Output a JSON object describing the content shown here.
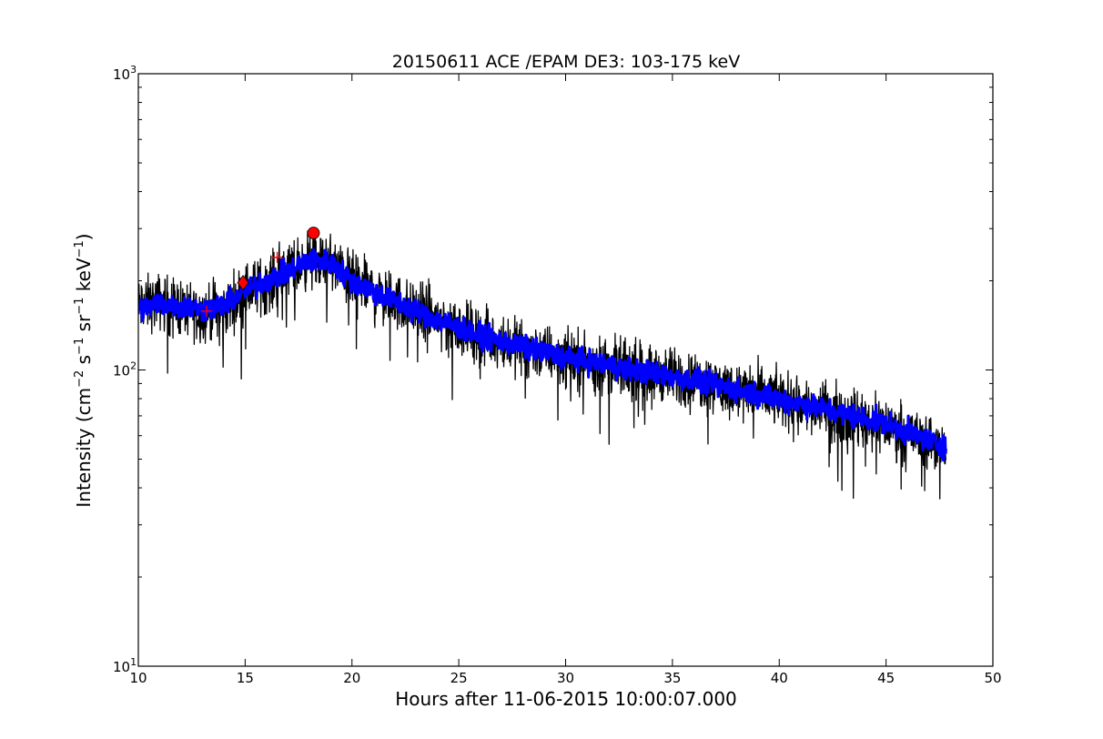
{
  "chart_data": {
    "type": "line",
    "title": "20150611 ACE /EPAM DE3: 103-175 keV",
    "xlabel": "Hours after 11-06-2015 10:00:07.000",
    "ylabel": "Intensity (cm$^{-2}$ s$^{-1}$ sr$^{-1}$ keV$^{-1}$)",
    "ylabel_parts": {
      "prefix": "Intensity (cm",
      "cm_exp": "−2",
      "s": " s",
      "s_exp": "−1",
      "sr": " sr",
      "sr_exp": "−1",
      "kev": " keV",
      "kev_exp": "−1",
      "suffix": ")"
    },
    "xlim": [
      10,
      50
    ],
    "ylim": [
      10,
      1000
    ],
    "yscale": "log",
    "grid": false,
    "xticks": [
      10,
      15,
      20,
      25,
      30,
      35,
      40,
      45,
      50
    ],
    "yticks": [
      {
        "value": 10,
        "base": "10",
        "exp": "1"
      },
      {
        "value": 100,
        "base": "10",
        "exp": "2"
      },
      {
        "value": 1000,
        "base": "10",
        "exp": "3"
      }
    ],
    "series": [
      {
        "color": "#000000",
        "style": "noisy raw intensity",
        "x_range": [
          10.0,
          47.8
        ],
        "trend": {
          "x": [
            10.0,
            11.0,
            13.0,
            14.0,
            15.0,
            16.0,
            17.0,
            18.0,
            19.0,
            20.0,
            22.0,
            24.0,
            26.0,
            30.0,
            35.0,
            40.0,
            45.0,
            47.8
          ],
          "y": [
            165,
            170,
            155,
            160,
            185,
            195,
            215,
            235,
            230,
            200,
            170,
            150,
            130,
            110,
            95,
            80,
            65,
            55
          ]
        }
      },
      {
        "color": "#0000ff",
        "style": "smoothed intensity",
        "x_range": [
          10.0,
          47.8
        ],
        "trend": {
          "x": [
            10.0,
            11.0,
            13.0,
            14.0,
            15.0,
            16.0,
            17.0,
            18.0,
            19.0,
            20.0,
            22.0,
            24.0,
            26.0,
            30.0,
            35.0,
            40.0,
            45.0,
            47.8
          ],
          "y": [
            160,
            168,
            160,
            165,
            185,
            200,
            215,
            235,
            230,
            200,
            170,
            148,
            130,
            110,
            95,
            80,
            66,
            55
          ]
        }
      }
    ],
    "markers": [
      {
        "name": "plus-marker",
        "shape": "plus",
        "color": "#ff0000",
        "x": 13.2,
        "y": 158
      },
      {
        "name": "diamond-marker",
        "shape": "diamond",
        "color": "#ff0000",
        "x": 14.9,
        "y": 197
      },
      {
        "name": "plus-marker",
        "shape": "plus",
        "color": "#ff0000",
        "x": 16.5,
        "y": 240
      },
      {
        "name": "circle-marker",
        "shape": "circle",
        "color": "#ff0000",
        "x": 18.2,
        "y": 290
      }
    ]
  }
}
